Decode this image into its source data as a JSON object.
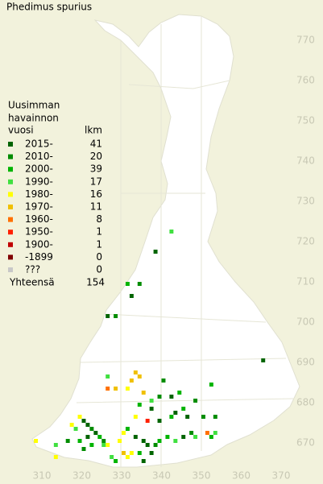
{
  "title": "Phedimus spurius",
  "legend": {
    "heading": [
      "Uusimman",
      "havainnon",
      "vuosi"
    ],
    "count_header": "lkm",
    "entries": [
      {
        "label": "2015-",
        "count": 41,
        "color": "#006400"
      },
      {
        "label": "2010-",
        "count": 20,
        "color": "#008c00"
      },
      {
        "label": "2000-",
        "count": 39,
        "color": "#00b400"
      },
      {
        "label": "1990-",
        "count": 17,
        "color": "#40e040"
      },
      {
        "label": "1980-",
        "count": 16,
        "color": "#ffff00"
      },
      {
        "label": "1970-",
        "count": 11,
        "color": "#f0c000"
      },
      {
        "label": "1960-",
        "count": 8,
        "color": "#ff7000"
      },
      {
        "label": "1950-",
        "count": 1,
        "color": "#ff2000"
      },
      {
        "label": "1900-",
        "count": 1,
        "color": "#c00000"
      },
      {
        "label": "-1899",
        "count": 0,
        "color": "#800000"
      },
      {
        "label": "???",
        "count": 0,
        "color": "#c8c8c8"
      }
    ],
    "total_label": "Yhteensä",
    "total": 154
  },
  "xticks": [
    310,
    320,
    330,
    340,
    350,
    360,
    370
  ],
  "yticks": [
    770,
    760,
    750,
    740,
    730,
    720,
    710,
    700,
    690,
    680,
    670
  ],
  "cells": [
    [
      342,
      722,
      3
    ],
    [
      338,
      717,
      0
    ],
    [
      331,
      709,
      2
    ],
    [
      334,
      709,
      1
    ],
    [
      332,
      706,
      0
    ],
    [
      326,
      701,
      0
    ],
    [
      328,
      701,
      1
    ],
    [
      365,
      690,
      0
    ],
    [
      326,
      686,
      3
    ],
    [
      333,
      687,
      5
    ],
    [
      334,
      686,
      5
    ],
    [
      332,
      685,
      5
    ],
    [
      326,
      683,
      6
    ],
    [
      328,
      683,
      5
    ],
    [
      331,
      683,
      4
    ],
    [
      335,
      682,
      5
    ],
    [
      342,
      681,
      0
    ],
    [
      339,
      681,
      1
    ],
    [
      337,
      680,
      3
    ],
    [
      352,
      684,
      2
    ],
    [
      340,
      685,
      1
    ],
    [
      344,
      682,
      2
    ],
    [
      348,
      680,
      1
    ],
    [
      334,
      679,
      2
    ],
    [
      337,
      678,
      0
    ],
    [
      343,
      677,
      0
    ],
    [
      345,
      678,
      2
    ],
    [
      350,
      676,
      1
    ],
    [
      333,
      676,
      4
    ],
    [
      336,
      675,
      7
    ],
    [
      339,
      675,
      0
    ],
    [
      342,
      676,
      2
    ],
    [
      346,
      676,
      0
    ],
    [
      353,
      676,
      1
    ],
    [
      319,
      676,
      4
    ],
    [
      320,
      675,
      0
    ],
    [
      321,
      674,
      0
    ],
    [
      322,
      673,
      1
    ],
    [
      318,
      673,
      3
    ],
    [
      317,
      674,
      4
    ],
    [
      323,
      672,
      0
    ],
    [
      324,
      671,
      2
    ],
    [
      325,
      670,
      1
    ],
    [
      321,
      671,
      0
    ],
    [
      319,
      670,
      2
    ],
    [
      316,
      670,
      1
    ],
    [
      313,
      669,
      3
    ],
    [
      308,
      670,
      4
    ],
    [
      326,
      669,
      4
    ],
    [
      329,
      670,
      4
    ],
    [
      330,
      672,
      4
    ],
    [
      331,
      673,
      2
    ],
    [
      333,
      671,
      0
    ],
    [
      335,
      670,
      0
    ],
    [
      336,
      669,
      0
    ],
    [
      338,
      669,
      1
    ],
    [
      339,
      670,
      2
    ],
    [
      341,
      671,
      2
    ],
    [
      343,
      670,
      3
    ],
    [
      345,
      671,
      0
    ],
    [
      348,
      671,
      3
    ],
    [
      351,
      672,
      6
    ],
    [
      352,
      671,
      2
    ],
    [
      353,
      672,
      3
    ],
    [
      347,
      672,
      1
    ],
    [
      330,
      667,
      5
    ],
    [
      332,
      667,
      4
    ],
    [
      334,
      667,
      2
    ],
    [
      337,
      667,
      0
    ],
    [
      331,
      666,
      4
    ],
    [
      328,
      665,
      2
    ],
    [
      327,
      666,
      3
    ],
    [
      313,
      666,
      4
    ],
    [
      335,
      665,
      0
    ],
    [
      325,
      669,
      3
    ],
    [
      320,
      668,
      1
    ],
    [
      322,
      669,
      2
    ]
  ]
}
